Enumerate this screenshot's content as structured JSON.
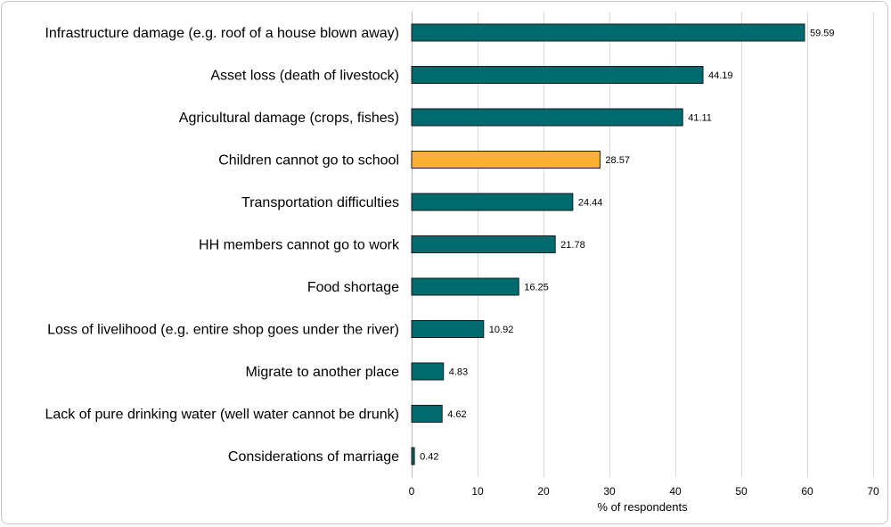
{
  "chart_data": {
    "type": "bar",
    "orientation": "horizontal",
    "categories": [
      "Infrastructure damage (e.g. roof of a house blown away)",
      "Asset loss (death of livestock)",
      "Agricultural damage (crops, fishes)",
      "Children cannot go to school",
      "Transportation difficulties",
      "HH members cannot go to work",
      "Food shortage",
      "Loss of livelihood (e.g. entire shop goes under the river)",
      "Migrate to another place",
      "Lack of pure drinking water (well water cannot be drunk)",
      "Considerations of marriage"
    ],
    "values": [
      59.59,
      44.19,
      41.11,
      28.57,
      24.44,
      21.78,
      16.25,
      10.92,
      4.83,
      4.62,
      0.42
    ],
    "value_labels": [
      "59.59",
      "44.19",
      "41.11",
      "28.57",
      "24.44",
      "21.78",
      "16.25",
      "10.92",
      "4.83",
      "4.62",
      "0.42"
    ],
    "highlight_index": 3,
    "colors": {
      "default": "#006a6e",
      "highlight": "#fbb034",
      "outline": "#1a1a1a",
      "grid": "#d9d9d9"
    },
    "title": "",
    "xlabel": "% of respondents",
    "ylabel": "",
    "xlim": [
      0,
      70
    ],
    "xticks": [
      0,
      10,
      20,
      30,
      40,
      50,
      60,
      70
    ],
    "xtick_labels": [
      "0",
      "10",
      "20",
      "30",
      "40",
      "50",
      "60",
      "70"
    ],
    "grid": "vertical",
    "legend": "none"
  }
}
